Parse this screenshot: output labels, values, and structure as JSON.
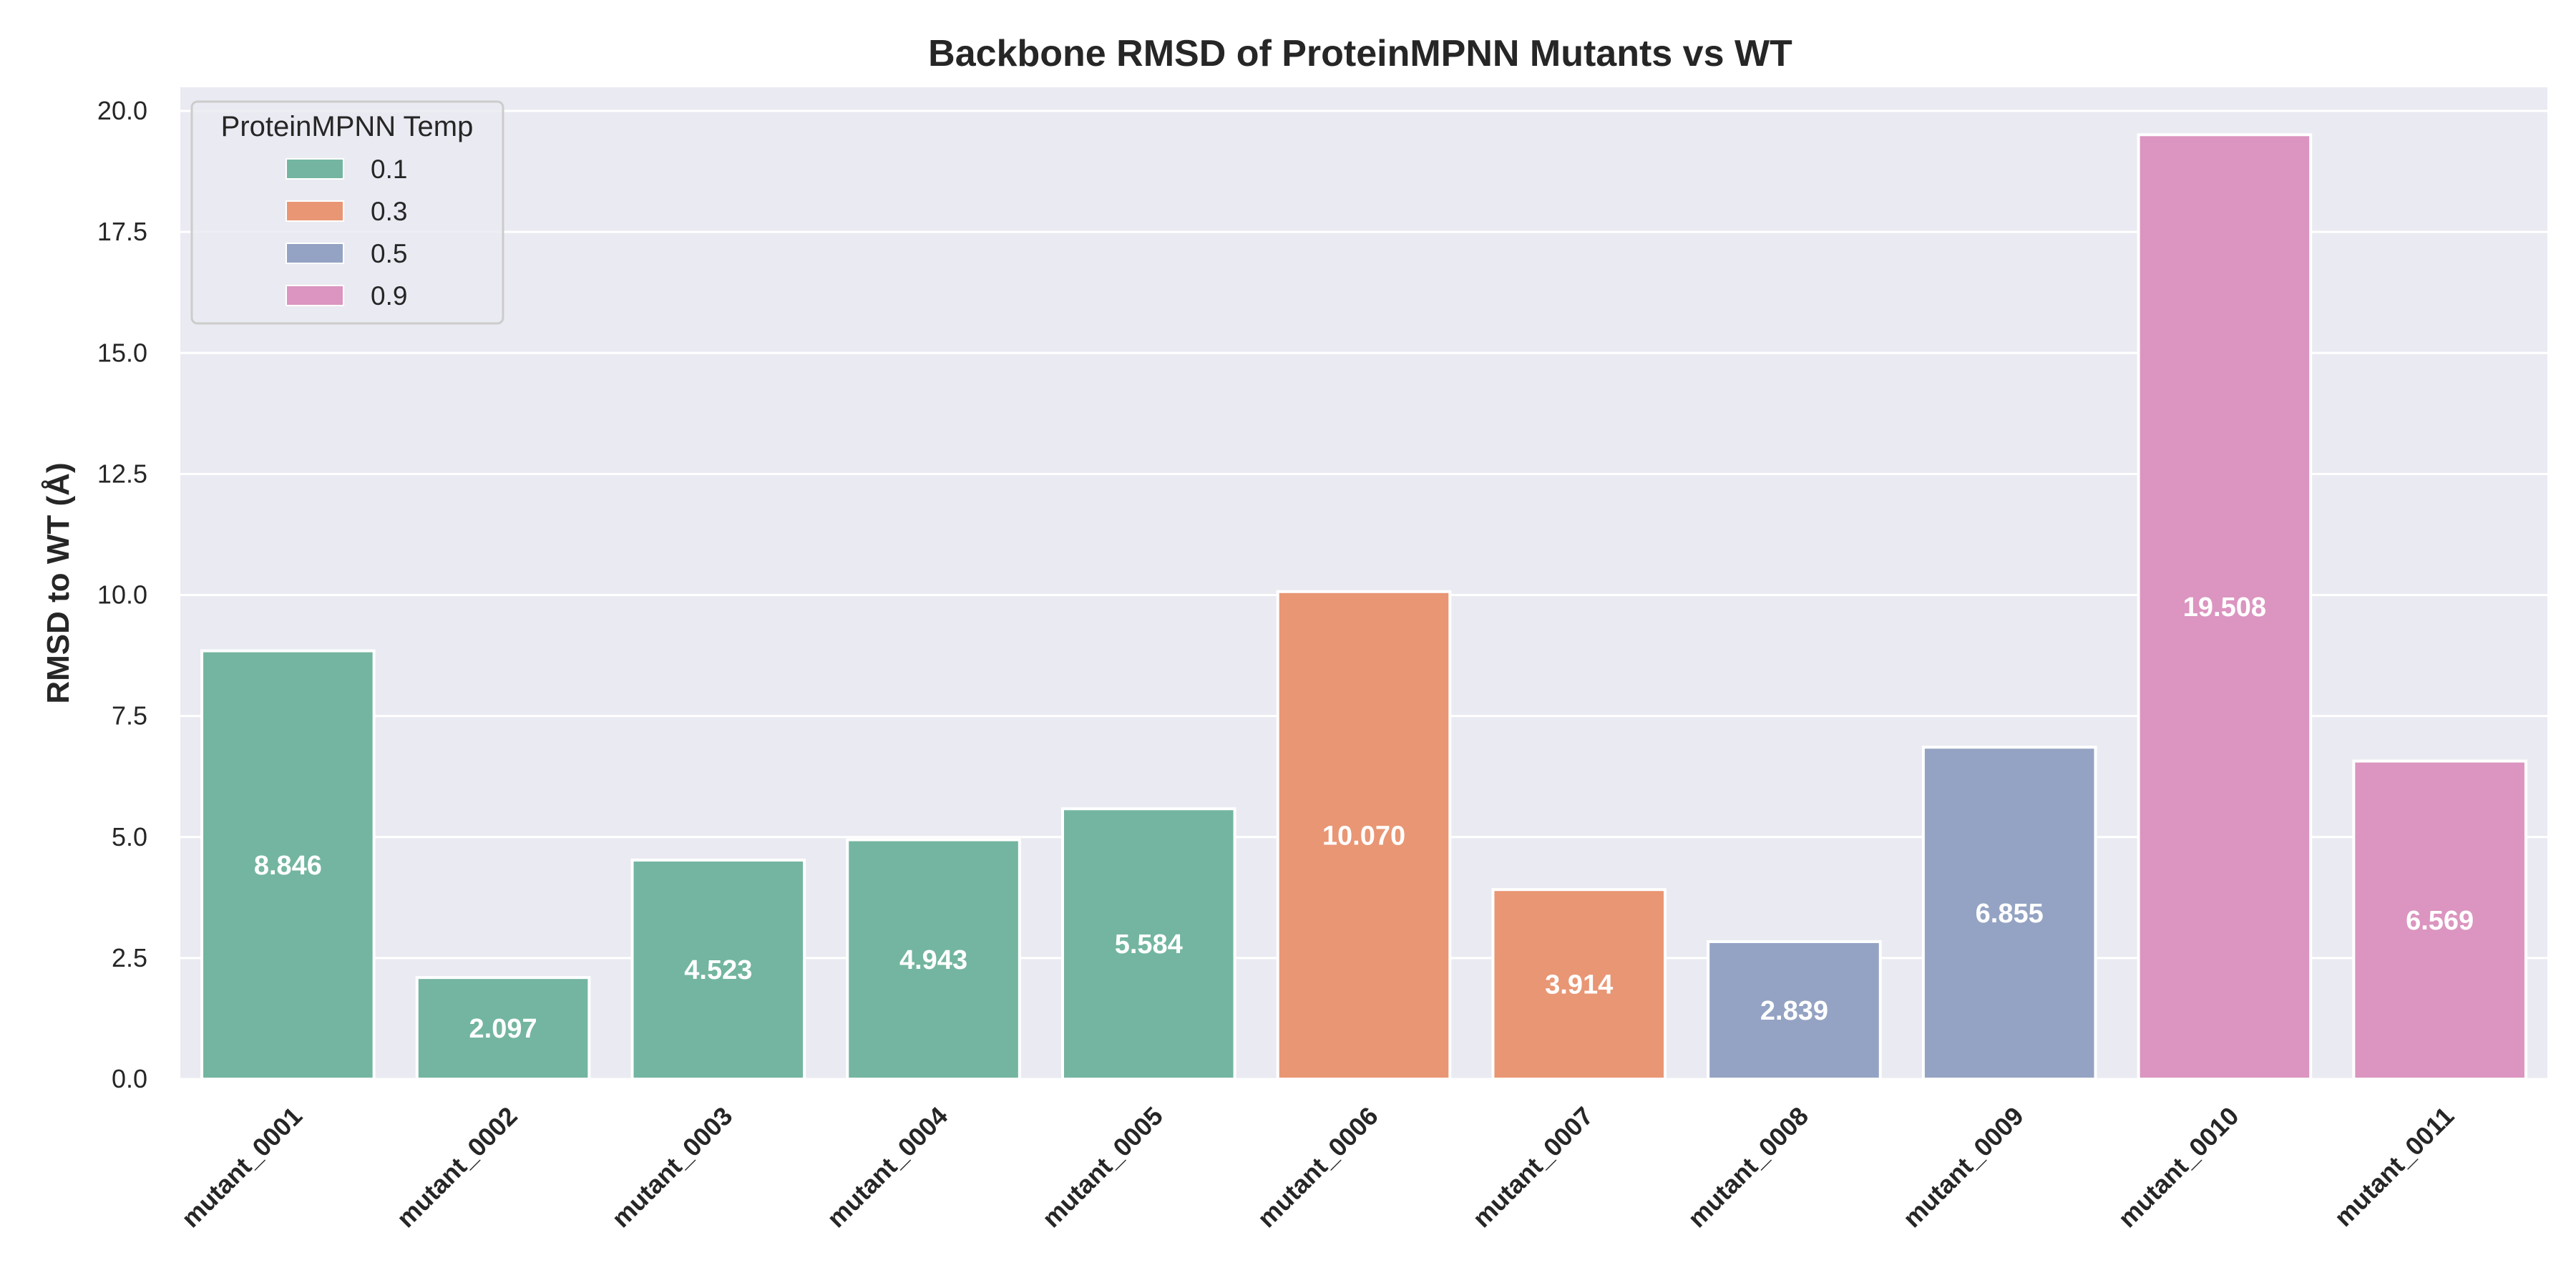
{
  "chart_data": {
    "type": "bar",
    "title": "Backbone RMSD of ProteinMPNN Mutants vs WT",
    "xlabel": "",
    "ylabel": "RMSD to WT (Å)",
    "ylim": [
      0,
      20.5
    ],
    "yticks": [
      "0.0",
      "2.5",
      "5.0",
      "7.5",
      "10.0",
      "12.5",
      "15.0",
      "17.5",
      "20.0"
    ],
    "grid": true,
    "legend": {
      "title": "ProteinMPNN Temp",
      "placement": "top-left",
      "entries": [
        {
          "label": "0.1",
          "color": "#73B5A0"
        },
        {
          "label": "0.3",
          "color": "#E99674"
        },
        {
          "label": "0.5",
          "color": "#94A3C3"
        },
        {
          "label": "0.9",
          "color": "#DB95C0"
        }
      ]
    },
    "categories": [
      "mutant_0001",
      "mutant_0002",
      "mutant_0003",
      "mutant_0004",
      "mutant_0005",
      "mutant_0006",
      "mutant_0007",
      "mutant_0008",
      "mutant_0009",
      "mutant_0010",
      "mutant_0011"
    ],
    "values": [
      8.846,
      2.097,
      4.523,
      4.943,
      5.584,
      10.07,
      3.914,
      2.839,
      6.855,
      19.508,
      6.569
    ],
    "value_labels": [
      "8.846",
      "2.097",
      "4.523",
      "4.943",
      "5.584",
      "10.070",
      "3.914",
      "2.839",
      "6.855",
      "19.508",
      "6.569"
    ],
    "temperature": [
      "0.1",
      "0.1",
      "0.1",
      "0.1",
      "0.1",
      "0.3",
      "0.3",
      "0.5",
      "0.5",
      "0.9",
      "0.9"
    ],
    "colors": {
      "plot_background": "#EAEAF2",
      "grid": "#FFFFFF",
      "text": "#262626"
    }
  }
}
